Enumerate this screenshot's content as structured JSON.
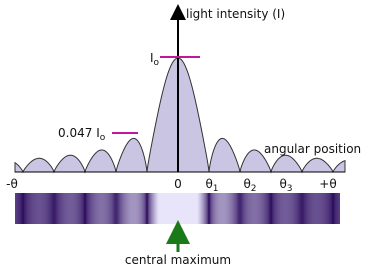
{
  "labels": {
    "y_axis": "light intensity (I)",
    "x_axis": "angular position",
    "central_peak": {
      "symbol": "I",
      "subscript": "o"
    },
    "side_peak": {
      "value": "0.047",
      "symbol": "I",
      "subscript": "o"
    }
  },
  "ticks": [
    {
      "symbol": "-θ"
    },
    {
      "symbol": "0"
    },
    {
      "symbol": "θ",
      "subscript": "1"
    },
    {
      "symbol": "θ",
      "subscript": "2"
    },
    {
      "symbol": "θ",
      "subscript": "3"
    },
    {
      "symbol": "+θ"
    }
  ],
  "caption": "central maximum"
}
